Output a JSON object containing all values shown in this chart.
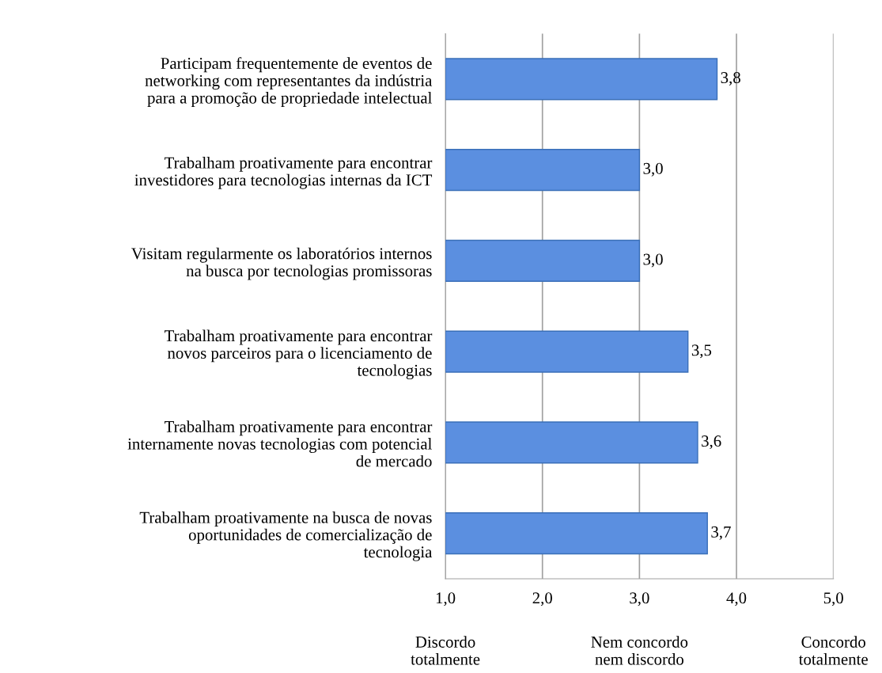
{
  "chart_data": {
    "type": "bar",
    "orientation": "horizontal",
    "categories": [
      "Participam frequentemente de eventos de\nnetworking com representantes da indústria\npara a promoção de propriedade intelectual",
      "Trabalham proativamente para encontrar\ninvestidores para tecnologias internas da ICT",
      "Visitam regularmente os laboratórios internos\nna busca por tecnologias promissoras",
      "Trabalham proativamente para encontrar\nnovos parceiros para o licenciamento de\ntecnologias",
      "Trabalham proativamente para encontrar\ninternamente novas tecnologias com potencial\nde mercado",
      "Trabalham proativamente na busca de novas\noportunidades de comercialização de\ntecnologia"
    ],
    "values": [
      3.8,
      3.0,
      3.0,
      3.5,
      3.6,
      3.7
    ],
    "value_labels": [
      "3,8",
      "3,0",
      "3,0",
      "3,5",
      "3,6",
      "3,7"
    ],
    "color": "#5b8fe0",
    "xlim": [
      1,
      5
    ],
    "xticks": [
      {
        "value": 1,
        "label": "1,0"
      },
      {
        "value": 2,
        "label": "2,0"
      },
      {
        "value": 3,
        "label": "3,0"
      },
      {
        "value": 4,
        "label": "4,0"
      },
      {
        "value": 5,
        "label": "5,0"
      }
    ],
    "grid": "x",
    "annotations": [
      "Discordo\ntotalmente",
      "Nem concordo\nnem discordo",
      "Concordo\ntotalmente"
    ]
  }
}
